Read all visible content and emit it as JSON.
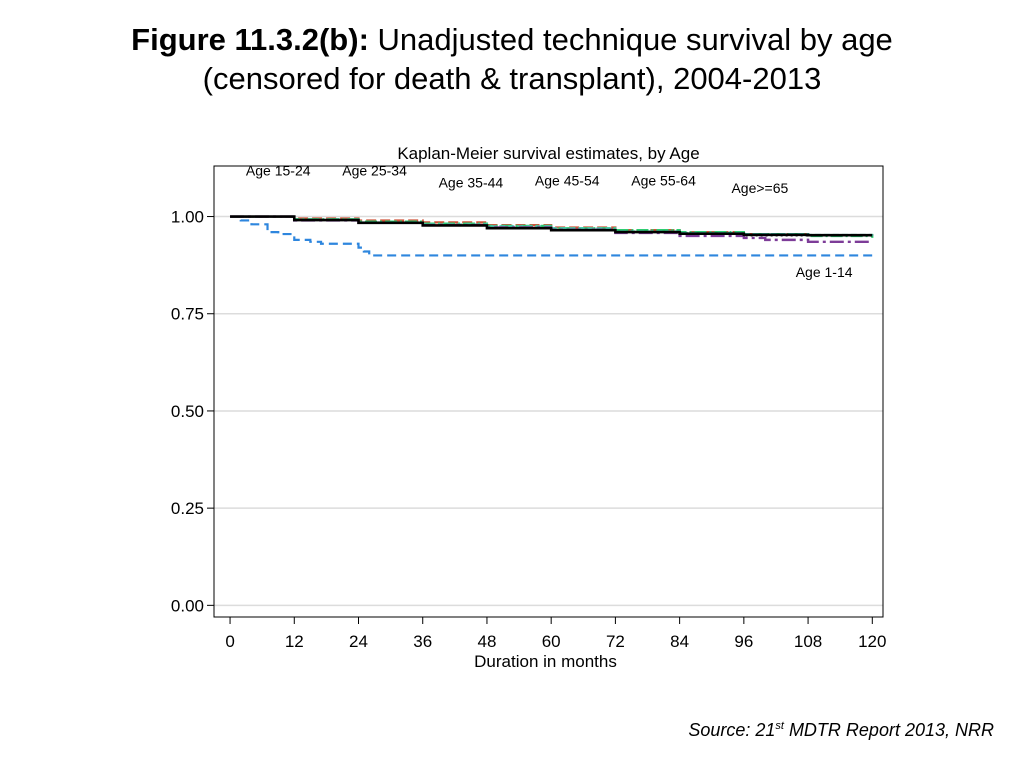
{
  "figure": {
    "label": "Figure 11.3.2(b):",
    "title_line1": "Unadjusted technique survival by age",
    "title_line2": "(censored for death & transplant), 2004-2013"
  },
  "source": {
    "prefix": "Source: 21",
    "superscript": "st",
    "suffix": " MDTR Report 2013, NRR"
  },
  "chart_data": {
    "type": "line",
    "title": "Kaplan-Meier survival estimates, by Age",
    "xlabel": "Duration in months",
    "ylabel": "",
    "xlim": [
      -3,
      122
    ],
    "ylim": [
      -0.03,
      1.13
    ],
    "xticks": [
      0,
      12,
      24,
      36,
      48,
      60,
      72,
      84,
      96,
      108,
      120
    ],
    "yticks": [
      0.0,
      0.25,
      0.5,
      0.75,
      1.0
    ],
    "ytick_labels": [
      "0.00",
      "0.25",
      "0.50",
      "0.75",
      "1.00"
    ],
    "grid": true,
    "step": true,
    "series": [
      {
        "name": "Age 1-14",
        "color": "#2e86de",
        "dash": "9,5",
        "width": 2.2,
        "x": [
          0,
          2,
          4,
          7,
          9,
          12,
          15,
          17,
          22,
          24,
          25,
          26,
          120
        ],
        "y": [
          1.0,
          0.99,
          0.98,
          0.96,
          0.955,
          0.94,
          0.935,
          0.93,
          0.93,
          0.92,
          0.91,
          0.9,
          0.9
        ]
      },
      {
        "name": "Age 15-24",
        "color": "#555555",
        "dash": "2,3",
        "width": 1.4,
        "x": [
          0,
          12,
          24,
          36,
          48,
          60,
          72,
          84,
          96,
          108,
          120
        ],
        "y": [
          1.0,
          0.99,
          0.985,
          0.978,
          0.972,
          0.965,
          0.96,
          0.955,
          0.95,
          0.95,
          0.95
        ]
      },
      {
        "name": "Age 25-34",
        "color": "#d1553b",
        "dash": "10,4",
        "width": 2.2,
        "x": [
          0,
          12,
          24,
          36,
          48,
          60,
          72,
          84,
          96,
          108,
          120
        ],
        "y": [
          1.0,
          0.995,
          0.99,
          0.985,
          0.978,
          0.972,
          0.965,
          0.96,
          0.955,
          0.952,
          0.95
        ]
      },
      {
        "name": "Age 35-44",
        "color": "#2ecc71",
        "dash": "12,3,2,3",
        "width": 2.2,
        "x": [
          0,
          12,
          24,
          36,
          48,
          60,
          72,
          84,
          96,
          108,
          120
        ],
        "y": [
          1.0,
          0.993,
          0.987,
          0.982,
          0.976,
          0.97,
          0.965,
          0.96,
          0.955,
          0.95,
          0.945
        ]
      },
      {
        "name": "Age 45-54",
        "color": "#48c9b0",
        "dash": "6,3",
        "width": 2.0,
        "x": [
          0,
          12,
          24,
          36,
          48,
          60,
          72,
          84,
          96,
          108,
          120
        ],
        "y": [
          1.0,
          0.992,
          0.985,
          0.98,
          0.975,
          0.97,
          0.962,
          0.958,
          0.955,
          0.953,
          0.95
        ]
      },
      {
        "name": "Age 55-64",
        "color": "#7d3c98",
        "dash": "14,4,3,4",
        "width": 2.4,
        "x": [
          0,
          12,
          24,
          36,
          48,
          60,
          72,
          84,
          96,
          100,
          108,
          120
        ],
        "y": [
          1.0,
          0.99,
          0.984,
          0.978,
          0.972,
          0.966,
          0.958,
          0.95,
          0.945,
          0.94,
          0.935,
          0.935
        ]
      },
      {
        "name": "Age>=65",
        "color": "#000000",
        "dash": "",
        "width": 2.6,
        "x": [
          0,
          12,
          24,
          36,
          48,
          60,
          72,
          84,
          96,
          108,
          120
        ],
        "y": [
          1.0,
          0.991,
          0.984,
          0.977,
          0.97,
          0.965,
          0.96,
          0.956,
          0.953,
          0.952,
          0.952
        ]
      }
    ],
    "annotations": [
      {
        "text": "Age 15-24",
        "x": 9,
        "y": 1.105
      },
      {
        "text": "Age 25-34",
        "x": 27,
        "y": 1.105
      },
      {
        "text": "Age 35-44",
        "x": 45,
        "y": 1.075
      },
      {
        "text": "Age 45-54",
        "x": 63,
        "y": 1.08
      },
      {
        "text": "Age 55-64",
        "x": 81,
        "y": 1.08
      },
      {
        "text": "Age>=65",
        "x": 99,
        "y": 1.06
      },
      {
        "text": "Age 1-14",
        "x": 111,
        "y": 0.845
      }
    ]
  }
}
